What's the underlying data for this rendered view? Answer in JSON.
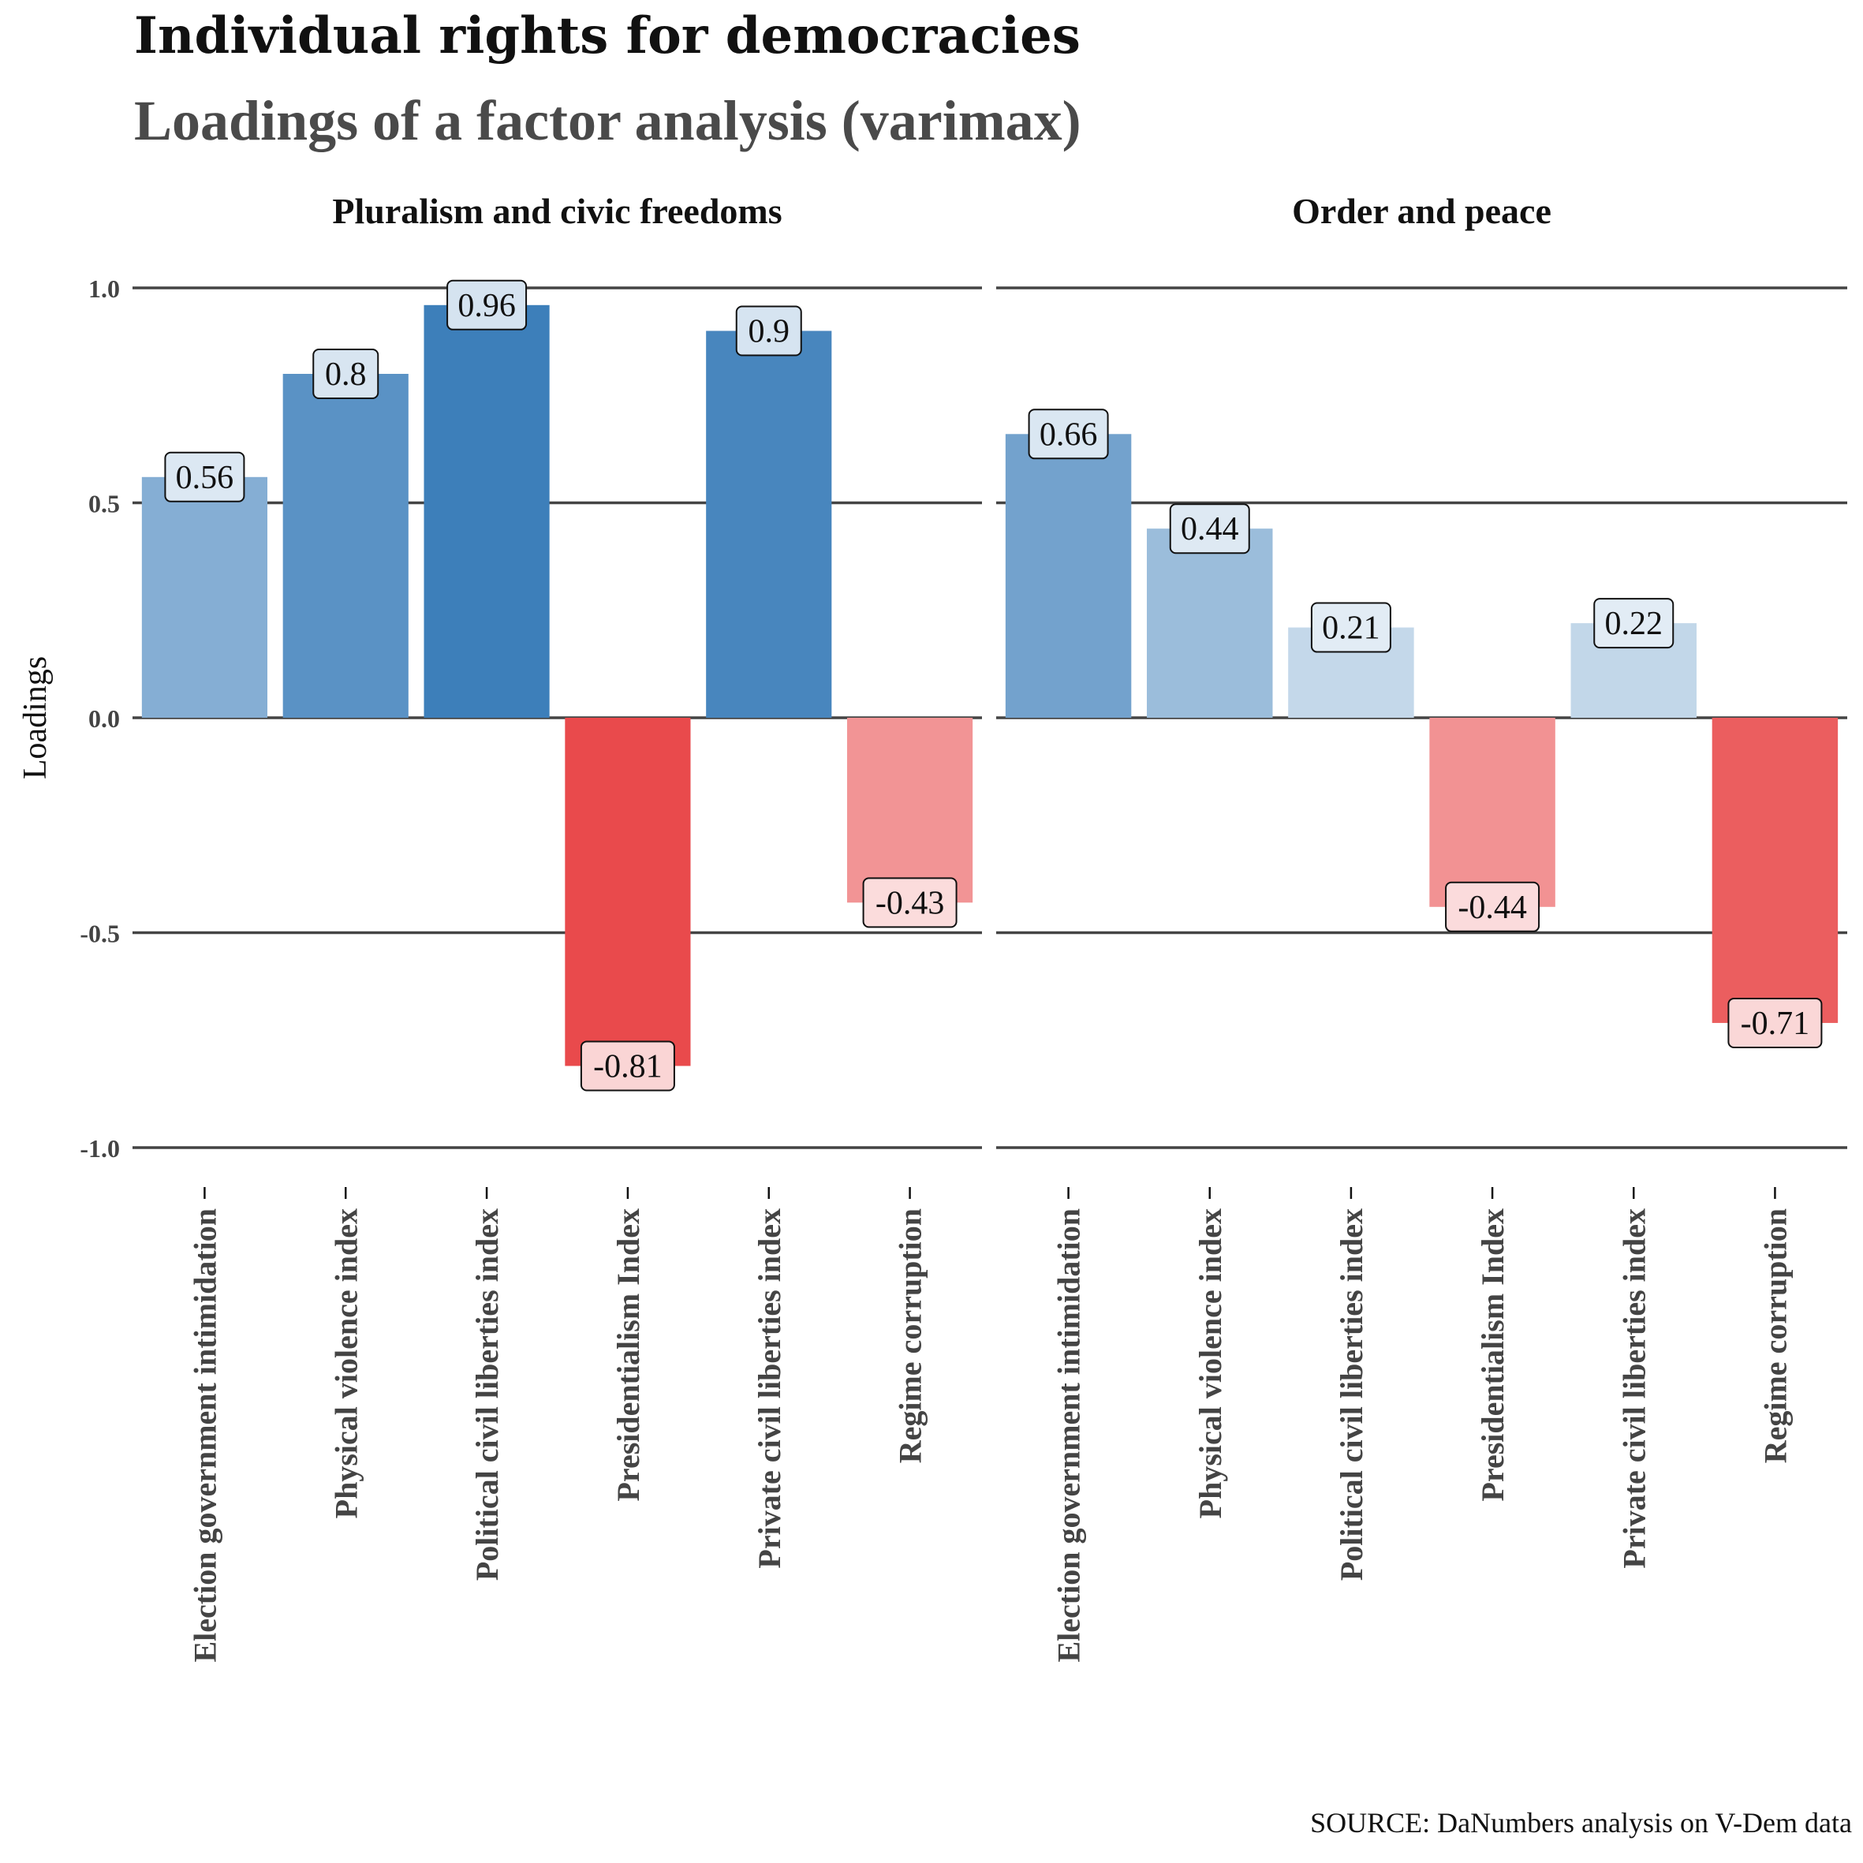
{
  "title": "Individual rights for democracies",
  "subtitle": "Loadings of a factor analysis (varimax)",
  "caption": "SOURCE: DaNumbers analysis on V-Dem data",
  "chart_data": {
    "type": "bar",
    "ylabel": "Loadings",
    "ylim": [
      -1.0,
      1.0
    ],
    "yticks": [
      -1.0,
      -0.5,
      0.0,
      0.5,
      1.0
    ],
    "ytick_labels": [
      "-1.0",
      "-0.5",
      "0.0",
      "0.5",
      "1.0"
    ],
    "categories": [
      "Election government intimidation",
      "Physical violence index",
      "Political civil liberties index",
      "Presidentialism Index",
      "Private civil liberties index",
      "Regime corruption"
    ],
    "panels": [
      {
        "name": "Pluralism and civic freedoms",
        "values": [
          0.56,
          0.8,
          0.96,
          -0.81,
          0.9,
          -0.43
        ],
        "labels": [
          "0.56",
          "0.8",
          "0.96",
          "-0.81",
          "0.9",
          "-0.43"
        ]
      },
      {
        "name": "Order and peace",
        "values": [
          0.66,
          0.44,
          0.21,
          -0.44,
          0.22,
          -0.71
        ],
        "labels": [
          "0.66",
          "0.44",
          "0.21",
          "-0.44",
          "0.22",
          "-0.71"
        ]
      }
    ],
    "colors": {
      "positive": "#2b73b4",
      "negative": "#e31a1c",
      "axis_line": "#444444",
      "tick_text": "#444444"
    },
    "grid": "horizontal"
  }
}
